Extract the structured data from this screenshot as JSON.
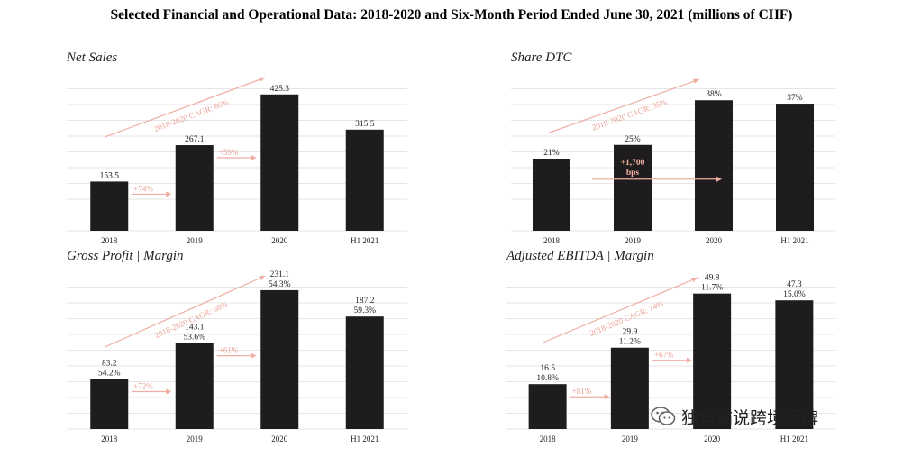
{
  "title": "Selected Financial and Operational Data: 2018-2020 and Six-Month Period Ended June 30, 2021 (millions of CHF)",
  "watermark": "独角猫说跨境品牌",
  "colors": {
    "bar": "#1e1c1c",
    "annotation": "#e9a295",
    "grid": "#e6e6e6"
  },
  "chart_data": [
    {
      "type": "bar",
      "title": "Net Sales",
      "categories": [
        "2018",
        "2019",
        "2020",
        "H1 2021"
      ],
      "values": [
        153.5,
        267.1,
        425.3,
        315.5
      ],
      "labels": [
        [
          "153.5"
        ],
        [
          "267.1"
        ],
        [
          "425.3"
        ],
        [
          "315.5"
        ]
      ],
      "ylim": [
        0,
        450
      ],
      "annotations": [
        {
          "text": "+74%",
          "type": "growth",
          "from": 0
        },
        {
          "text": "+59%",
          "type": "growth",
          "from": 1
        },
        {
          "text": "2018-2020 CAGR: 66%",
          "type": "cagr"
        }
      ]
    },
    {
      "type": "bar",
      "title": "Share DTC",
      "categories": [
        "2018",
        "2019",
        "2020",
        "H1 2021"
      ],
      "values": [
        21,
        25,
        38,
        37
      ],
      "labels": [
        [
          "21%"
        ],
        [
          "25%"
        ],
        [
          "38%"
        ],
        [
          "37%"
        ]
      ],
      "ylim": [
        0,
        42
      ],
      "annotations": [
        {
          "text": "+1,700 bps",
          "type": "inside",
          "bar": 1
        },
        {
          "text": "2018-2020 CAGR: 35%",
          "type": "cagr"
        }
      ]
    },
    {
      "type": "bar",
      "title": "Gross Profit | Margin",
      "categories": [
        "2018",
        "2019",
        "2020",
        "H1 2021"
      ],
      "values": [
        83.2,
        143.1,
        231.1,
        187.2
      ],
      "margins": [
        "54.2%",
        "53.6%",
        "54.3%",
        "59.3%"
      ],
      "labels": [
        [
          "83.2",
          "54.2%"
        ],
        [
          "143.1",
          "53.6%"
        ],
        [
          "231.1",
          "54.3%"
        ],
        [
          "187.2",
          "59.3%"
        ]
      ],
      "ylim": [
        0,
        240
      ],
      "annotations": [
        {
          "text": "+72%",
          "type": "growth",
          "from": 0
        },
        {
          "text": "+61%",
          "type": "growth",
          "from": 1
        },
        {
          "text": "2018-2020 CAGR: 66%",
          "type": "cagr"
        }
      ]
    },
    {
      "type": "bar",
      "title": "Adjusted EBITDA | Margin",
      "categories": [
        "2018",
        "2019",
        "2020",
        "H1 2021"
      ],
      "values": [
        16.5,
        29.9,
        49.8,
        47.3
      ],
      "margins": [
        "10.8%",
        "11.2%",
        "11.7%",
        "15.0%"
      ],
      "labels": [
        [
          "16.5",
          "10.8%"
        ],
        [
          "29.9",
          "11.2%"
        ],
        [
          "49.8",
          "11.7%"
        ],
        [
          "47.3",
          "15.0%"
        ]
      ],
      "ylim": [
        0,
        53
      ],
      "annotations": [
        {
          "text": "+81%",
          "type": "growth",
          "from": 0
        },
        {
          "text": "+67%",
          "type": "growth",
          "from": 1
        },
        {
          "text": "2018-2020 CAGR: 74%",
          "type": "cagr"
        }
      ]
    }
  ]
}
